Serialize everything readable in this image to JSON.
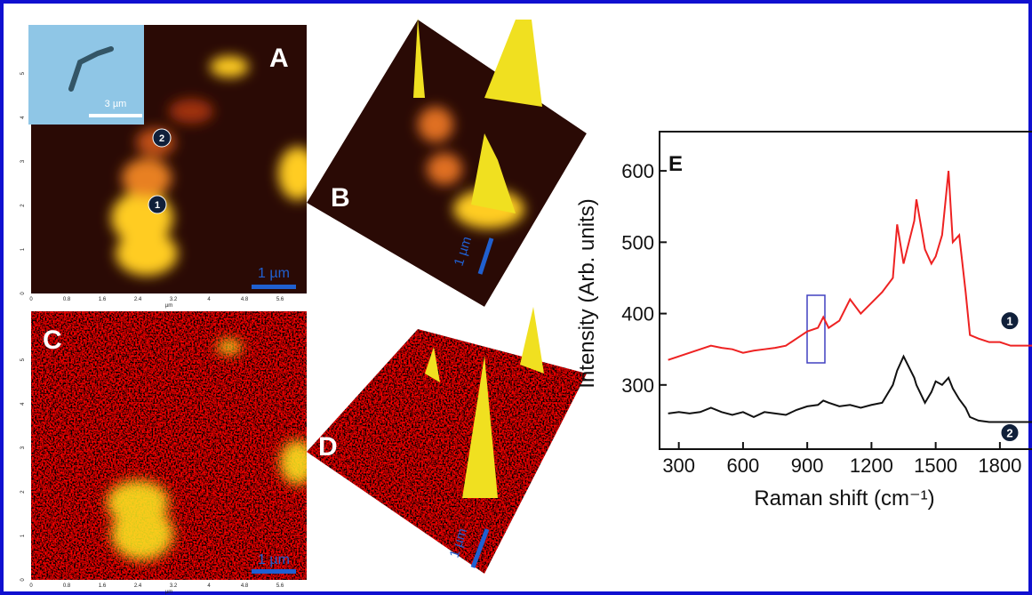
{
  "panels": {
    "A": {
      "label": "A",
      "inset_scale": "3 µm",
      "scale": "1 µm",
      "markers": [
        "1",
        "2"
      ],
      "unit": "µm",
      "xticks": [
        "0",
        "0.8",
        "1.6",
        "2.4",
        "3.2",
        "4",
        "4.8",
        "5.6"
      ],
      "yticks": [
        "0",
        "1",
        "2",
        "3",
        "4",
        "5"
      ]
    },
    "B": {
      "label": "B",
      "scale": "1 µm"
    },
    "C": {
      "label": "C",
      "scale": "1 µm",
      "unit": "µm",
      "xticks": [
        "0",
        "0.8",
        "1.6",
        "2.4",
        "3.2",
        "4",
        "4.8",
        "5.6"
      ],
      "yticks": [
        "0",
        "1",
        "2",
        "3",
        "4",
        "5"
      ]
    },
    "D": {
      "label": "D",
      "scale": "1 µm"
    }
  },
  "chart_data": {
    "type": "line",
    "title": "E",
    "x_label": "Raman shift (cm⁻¹)",
    "y_label": "Intensity (Arb. units)",
    "x": [
      250,
      300,
      350,
      400,
      450,
      500,
      550,
      600,
      650,
      700,
      750,
      800,
      850,
      900,
      950,
      975,
      1000,
      1050,
      1100,
      1150,
      1200,
      1250,
      1300,
      1320,
      1350,
      1400,
      1410,
      1450,
      1480,
      1500,
      1530,
      1560,
      1580,
      1610,
      1640,
      1660,
      1700,
      1750,
      1800,
      1850,
      1900,
      1950
    ],
    "series": [
      {
        "name": "1",
        "color": "#ee2222",
        "values": [
          335,
          340,
          345,
          350,
          355,
          352,
          350,
          345,
          348,
          350,
          352,
          355,
          365,
          375,
          380,
          395,
          380,
          390,
          420,
          400,
          415,
          430,
          450,
          525,
          470,
          530,
          560,
          490,
          470,
          480,
          510,
          600,
          500,
          510,
          430,
          370,
          365,
          360,
          360,
          355,
          355,
          355
        ]
      },
      {
        "name": "2",
        "color": "#111111",
        "values": [
          260,
          262,
          260,
          262,
          268,
          262,
          258,
          262,
          255,
          262,
          260,
          258,
          265,
          270,
          272,
          278,
          275,
          270,
          272,
          268,
          272,
          275,
          300,
          320,
          340,
          310,
          300,
          275,
          290,
          305,
          300,
          310,
          295,
          280,
          268,
          255,
          250,
          248,
          248,
          248,
          248,
          248
        ]
      }
    ],
    "xlim": [
      210,
      1950
    ],
    "xticks": [
      300,
      600,
      900,
      1200,
      1500,
      1800
    ],
    "ylim": [
      210,
      655
    ],
    "yticks": [
      300,
      400,
      500,
      600
    ]
  }
}
